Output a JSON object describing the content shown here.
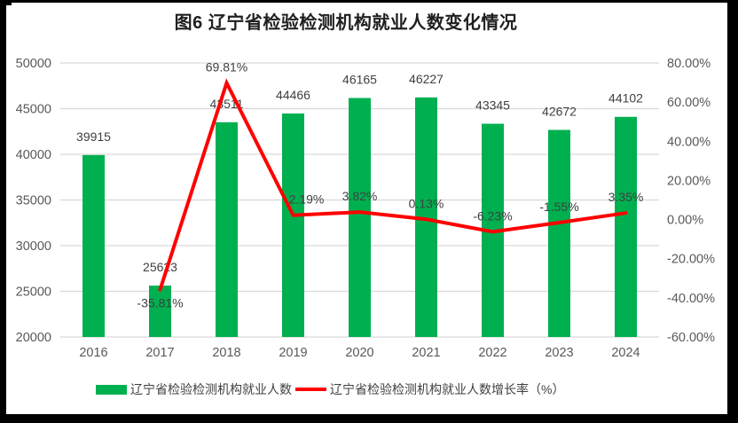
{
  "chart_data": {
    "type": "bar+line combo",
    "title": "图6 辽宁省检验检测机构就业人数变化情况",
    "categories": [
      "2016",
      "2017",
      "2018",
      "2019",
      "2020",
      "2021",
      "2022",
      "2023",
      "2024"
    ],
    "series": [
      {
        "name": "辽宁省检验检测机构就业人数",
        "type": "bar",
        "axis": "left",
        "color": "#00B050",
        "values": [
          39915,
          25623,
          43511,
          44466,
          46165,
          46227,
          43345,
          42672,
          44102
        ],
        "labels": [
          "39915",
          "25623",
          "43511",
          "44466",
          "46165",
          "46227",
          "43345",
          "42672",
          "44102"
        ]
      },
      {
        "name": "辽宁省检验检测机构就业人数增长率（%）",
        "type": "line",
        "axis": "right",
        "color": "#FF0000",
        "values": [
          null,
          -35.81,
          69.81,
          2.19,
          3.82,
          0.13,
          -6.23,
          -1.55,
          3.35
        ],
        "labels": [
          "",
          "-35.81%",
          "69.81%",
          "2.19%",
          "3.82%",
          "0.13%",
          "-6.23%",
          "-1.55%",
          "3.35%"
        ]
      }
    ],
    "left_axis": {
      "min": 20000,
      "max": 50000,
      "step": 5000,
      "ticks": [
        "50000",
        "45000",
        "40000",
        "35000",
        "30000",
        "25000",
        "20000"
      ]
    },
    "right_axis": {
      "min": -60,
      "max": 80,
      "step": 20,
      "ticks": [
        "80.00%",
        "60.00%",
        "40.00%",
        "20.00%",
        "0.00%",
        "-20.00%",
        "-40.00%",
        "-60.00%"
      ]
    },
    "grid": true,
    "legend_position": "bottom"
  },
  "colors": {
    "bar": "#00B050",
    "line": "#FF0000",
    "grid": "#D9D9D9",
    "axis_text": "#595959",
    "data_label_text": "#3F3F3F",
    "title_text": "#1F1F1F",
    "frame": "#000000",
    "background": "#FFFFFF"
  }
}
